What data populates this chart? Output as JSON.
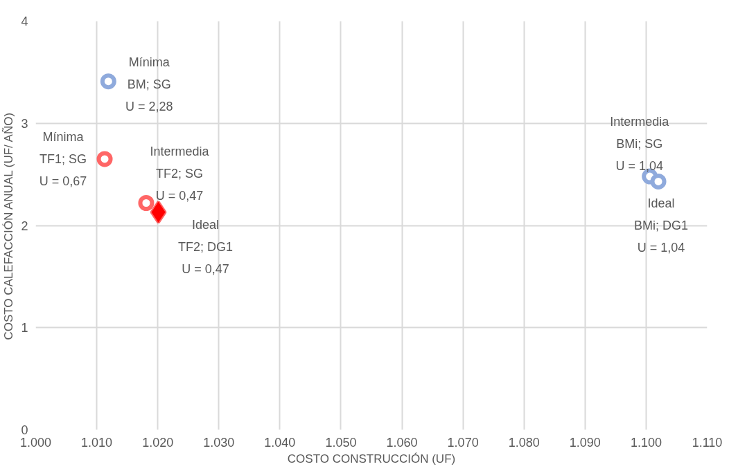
{
  "chart_data": {
    "type": "scatter",
    "xlabel": "COSTO CONSTRUCCIÓN (UF)",
    "ylabel": "COSTO CALEFACCIÓN ANUAL (UF/ AÑO)",
    "xlim": [
      1000,
      1110
    ],
    "xticks": [
      {
        "value": 1000,
        "label": "1.000"
      },
      {
        "value": 1010,
        "label": "1.010"
      },
      {
        "value": 1020,
        "label": "1.020"
      },
      {
        "value": 1030,
        "label": "1.030"
      },
      {
        "value": 1040,
        "label": "1.040"
      },
      {
        "value": 1050,
        "label": "1.050"
      },
      {
        "value": 1060,
        "label": "1.060"
      },
      {
        "value": 1070,
        "label": "1.070"
      },
      {
        "value": 1080,
        "label": "1.080"
      },
      {
        "value": 1090,
        "label": "1.090"
      },
      {
        "value": 1100,
        "label": "1.100"
      },
      {
        "value": 1110,
        "label": "1.110"
      }
    ],
    "ylim": [
      0,
      4
    ],
    "yticks": [
      0,
      1,
      2,
      3,
      4
    ],
    "grid": true,
    "series": [
      {
        "color": "#8faadc",
        "marker": "circle",
        "x": [
          1011.9,
          1100.6,
          1102
        ],
        "values": [
          3.41,
          2.48,
          2.43
        ]
      },
      {
        "color": "#ff6666",
        "marker": "circle",
        "x": [
          1011.3,
          1018.1
        ],
        "values": [
          2.65,
          2.22
        ]
      },
      {
        "color": "#ff0000",
        "marker": "diamond",
        "x": [
          1020.1
        ],
        "values": [
          2.13
        ]
      }
    ],
    "annotations": [
      {
        "text": "Mínima\nBM; SG\nU = 2,28",
        "x": 1011.9,
        "y": 3.41
      },
      {
        "text": "Mínima\nTF1; SG\nU = 0,67",
        "x": 1011.3,
        "y": 2.65
      },
      {
        "text": "Intermedia\nTF2; SG\nU = 0,47",
        "x": 1018.1,
        "y": 2.22
      },
      {
        "text": "Ideal\nTF2; DG1\nU = 0,47",
        "x": 1020.1,
        "y": 2.13
      },
      {
        "text": "Intermedia\nBMi; SG\nU = 1,04",
        "x": 1100.6,
        "y": 2.48
      },
      {
        "text": "Ideal\nBMi; DG1\nU = 1,04",
        "x": 1102,
        "y": 2.43
      }
    ]
  }
}
